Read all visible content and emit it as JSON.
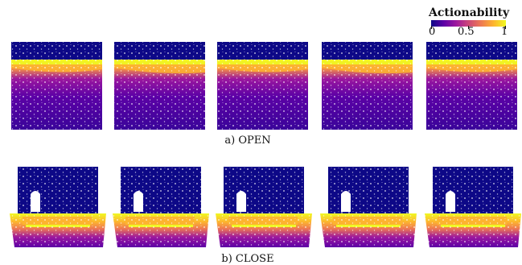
{
  "colorbar": {
    "title": "Actionability",
    "tick_labels": [
      "0",
      "0.5",
      "1"
    ],
    "tick_values": [
      0,
      0.5,
      1
    ],
    "colors": [
      "#0d0887",
      "#5c01a6",
      "#9c179e",
      "#cc4778",
      "#ed7953",
      "#fdb42f",
      "#f0f921"
    ]
  },
  "rows": [
    {
      "caption": "a) OPEN",
      "shape": "cabinet-door",
      "panels": [
        {
          "handle_value": 0.95,
          "body_value": 0.15
        },
        {
          "handle_value": 0.9,
          "body_value": 0.2
        },
        {
          "handle_value": 1.0,
          "body_value": 0.25
        },
        {
          "handle_value": 0.9,
          "body_value": 0.15
        },
        {
          "handle_value": 0.95,
          "body_value": 0.3
        }
      ]
    },
    {
      "caption": "b) CLOSE",
      "shape": "drawer",
      "panels": [
        {
          "handle_value": 0.95,
          "body_value": 0.35
        },
        {
          "handle_value": 0.9,
          "body_value": 0.35
        },
        {
          "handle_value": 0.95,
          "body_value": 0.3
        },
        {
          "handle_value": 1.0,
          "body_value": 0.4
        },
        {
          "handle_value": 0.9,
          "body_value": 0.35
        }
      ]
    }
  ]
}
